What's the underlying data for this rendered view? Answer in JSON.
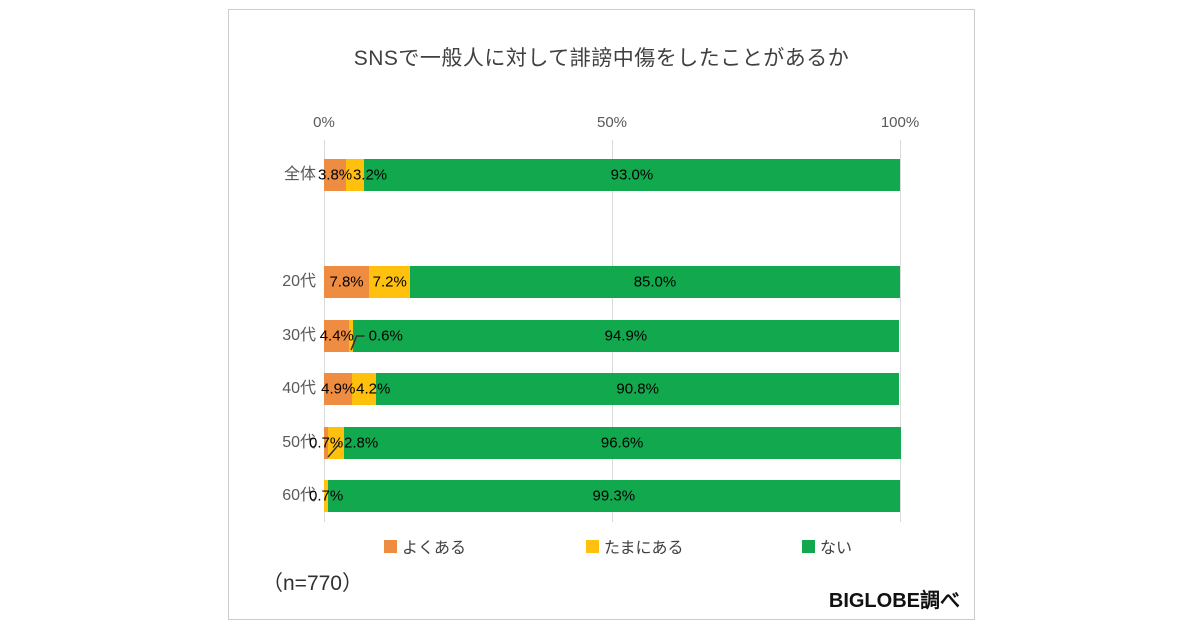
{
  "chart_data": {
    "type": "bar",
    "orientation": "horizontal-stacked",
    "title": "SNSで一般人に対して誹謗中傷をしたことがあるか",
    "categories": [
      "全体",
      "20代",
      "30代",
      "40代",
      "50代",
      "60代"
    ],
    "series": [
      {
        "name": "よくある",
        "color": "#EE8C42",
        "values": [
          3.8,
          7.8,
          4.4,
          4.9,
          0.7,
          0
        ]
      },
      {
        "name": "たまにある",
        "color": "#FFC00E",
        "values": [
          3.2,
          7.2,
          0.6,
          4.2,
          2.8,
          0.7
        ]
      },
      {
        "name": "ない",
        "color": "#12A84E",
        "values": [
          93.0,
          85.0,
          94.9,
          90.8,
          96.6,
          99.3
        ]
      }
    ],
    "x_axis": {
      "ticks": [
        "0%",
        "50%",
        "100%"
      ],
      "range": [
        0,
        100
      ],
      "grid": true
    },
    "legend": {
      "position": "bottom",
      "entries": [
        "よくある",
        "たまにある",
        "ない"
      ]
    },
    "value_label_format": "0.0%",
    "annotations": {
      "callouts": [
        {
          "category": "30代",
          "series": "たまにある"
        },
        {
          "category": "50代",
          "series": "よくある"
        }
      ]
    }
  },
  "footer": {
    "sample_size": "（n=770）",
    "source": "BIGLOBE調べ"
  },
  "colors": {
    "grid": "#D9D9D9",
    "axis_text": "#595959",
    "title_text": "#404040",
    "card_border": "#CCCCCC",
    "leader_line": "#303030"
  }
}
